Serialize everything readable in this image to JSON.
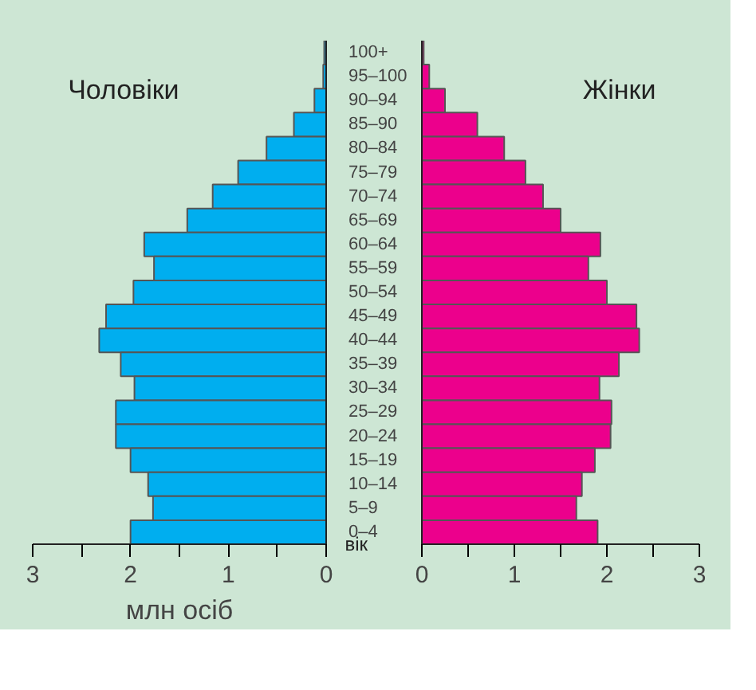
{
  "chart_data": [
    {
      "type": "bar",
      "orientation": "horizontal",
      "categories": [
        "100+",
        "95–100",
        "90–94",
        "85–90",
        "80–84",
        "75–79",
        "70–74",
        "65–69",
        "60–64",
        "55–59",
        "50–54",
        "45–49",
        "40–44",
        "35–39",
        "30–34",
        "25–29",
        "20–24",
        "15–19",
        "10–14",
        "5–9",
        "0–4"
      ],
      "series": [
        {
          "name": "Чоловіки",
          "color": "#00aeef",
          "values": [
            0.02,
            0.03,
            0.12,
            0.33,
            0.61,
            0.9,
            1.16,
            1.42,
            1.86,
            1.76,
            1.97,
            2.25,
            2.32,
            2.1,
            1.96,
            2.15,
            2.15,
            2.0,
            1.82,
            1.77,
            2.0
          ]
        }
      ],
      "xlim": [
        3,
        0
      ],
      "xticks": [
        3,
        {
          "value": 2.5,
          "label": null
        },
        2,
        {
          "value": 1.5,
          "label": null
        },
        1,
        {
          "value": 0.5,
          "label": null
        },
        0
      ],
      "xlabel": "млн осіб",
      "ylabel": "вік"
    },
    {
      "type": "bar",
      "orientation": "horizontal",
      "categories": [
        null,
        null,
        null,
        null,
        null,
        null,
        null,
        null,
        null,
        null,
        null,
        null,
        null,
        null,
        null,
        null,
        null,
        null,
        null,
        null,
        null
      ],
      "series": [
        {
          "name": "Жінки",
          "color": "#ec008c",
          "values": [
            0.02,
            0.08,
            0.25,
            0.6,
            0.89,
            1.12,
            1.31,
            1.5,
            1.93,
            1.8,
            2.0,
            2.32,
            2.35,
            2.13,
            1.92,
            2.05,
            2.04,
            1.87,
            1.73,
            1.67,
            1.9
          ]
        }
      ],
      "xlim": [
        0,
        3
      ],
      "xticks": [
        0,
        {
          "value": 0.5,
          "label": null
        },
        1,
        {
          "value": 1.5,
          "label": null
        },
        2,
        {
          "value": 2.5,
          "label": null
        },
        3
      ],
      "tick_labels": "x"
    }
  ]
}
